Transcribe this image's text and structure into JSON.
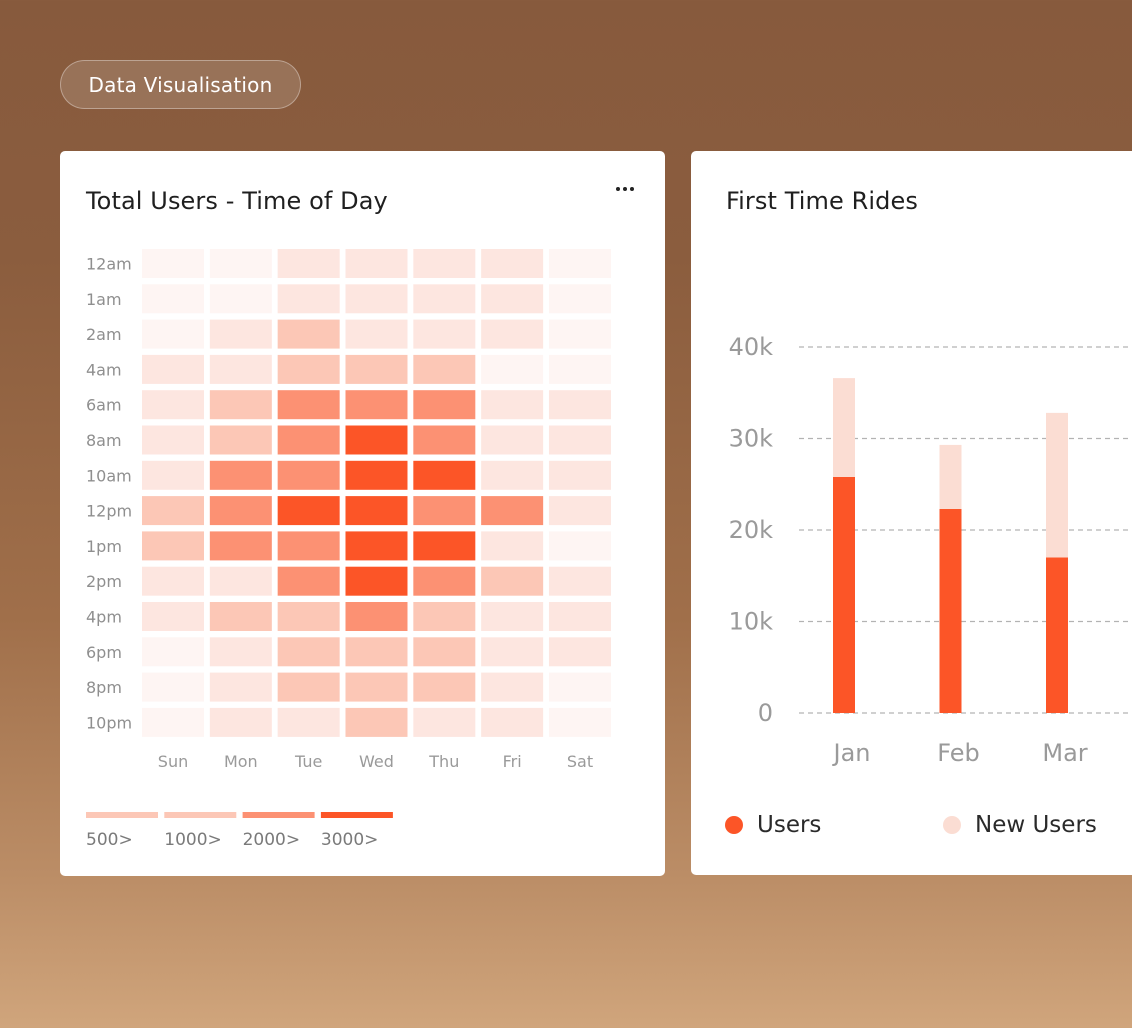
{
  "badge": {
    "label": "Data Visualisation"
  },
  "colors": {
    "accent": "#fc5527",
    "level_0": "#fef5f3",
    "level_1": "#fde6e0",
    "level_2": "#fcc7b6",
    "level_3": "#fc9173",
    "level_4": "#fc5527",
    "new_users": "#fbddd3"
  },
  "heatmap_card": {
    "title": "Total Users - Time of Day",
    "more_icon": "more-horizontal-icon"
  },
  "bar_card": {
    "title": "First Time Rides"
  },
  "chart_data": [
    {
      "type": "heatmap",
      "title": "Total Users - Time of Day",
      "rows": [
        "12am",
        "1am",
        "2am",
        "4am",
        "6am",
        "8am",
        "10am",
        "12pm",
        "1pm",
        "2pm",
        "4pm",
        "6pm",
        "8pm",
        "10pm"
      ],
      "columns": [
        "Sun",
        "Mon",
        "Tue",
        "Wed",
        "Thu",
        "Fri",
        "Sat"
      ],
      "levels": [
        [
          0,
          0,
          1,
          1,
          1,
          1,
          0
        ],
        [
          0,
          0,
          1,
          1,
          1,
          1,
          0
        ],
        [
          0,
          1,
          2,
          1,
          1,
          1,
          0
        ],
        [
          1,
          1,
          2,
          2,
          2,
          0,
          0
        ],
        [
          1,
          2,
          3,
          3,
          3,
          1,
          1
        ],
        [
          1,
          2,
          3,
          4,
          3,
          1,
          1
        ],
        [
          1,
          3,
          3,
          4,
          4,
          1,
          1
        ],
        [
          2,
          3,
          4,
          4,
          3,
          3,
          1
        ],
        [
          2,
          3,
          3,
          4,
          4,
          1,
          0
        ],
        [
          1,
          1,
          3,
          4,
          3,
          2,
          1
        ],
        [
          1,
          2,
          2,
          3,
          2,
          1,
          1
        ],
        [
          0,
          1,
          2,
          2,
          2,
          1,
          1
        ],
        [
          0,
          1,
          2,
          2,
          2,
          1,
          0
        ],
        [
          0,
          1,
          1,
          2,
          1,
          1,
          0
        ]
      ],
      "legend": [
        {
          "label": "500>",
          "level": 2
        },
        {
          "label": "1000>",
          "level": 2
        },
        {
          "label": "2000>",
          "level": 3
        },
        {
          "label": "3000>",
          "level": 4
        }
      ]
    },
    {
      "type": "bar",
      "title": "First Time Rides",
      "categories": [
        "Jan",
        "Feb",
        "Mar"
      ],
      "stacked": true,
      "series": [
        {
          "name": "Users",
          "color": "#fc5527",
          "values": [
            25800,
            22300,
            17000
          ]
        },
        {
          "name": "New Users",
          "color": "#fbddd3",
          "values": [
            10800,
            7000,
            15800
          ]
        }
      ],
      "ylim": [
        0,
        40000
      ],
      "yticks": [
        {
          "value": 0,
          "label": "0"
        },
        {
          "value": 10000,
          "label": "10k"
        },
        {
          "value": 20000,
          "label": "20k"
        },
        {
          "value": 30000,
          "label": "30k"
        },
        {
          "value": 40000,
          "label": "40k"
        }
      ],
      "grid": true,
      "legend_position": "bottom"
    }
  ]
}
